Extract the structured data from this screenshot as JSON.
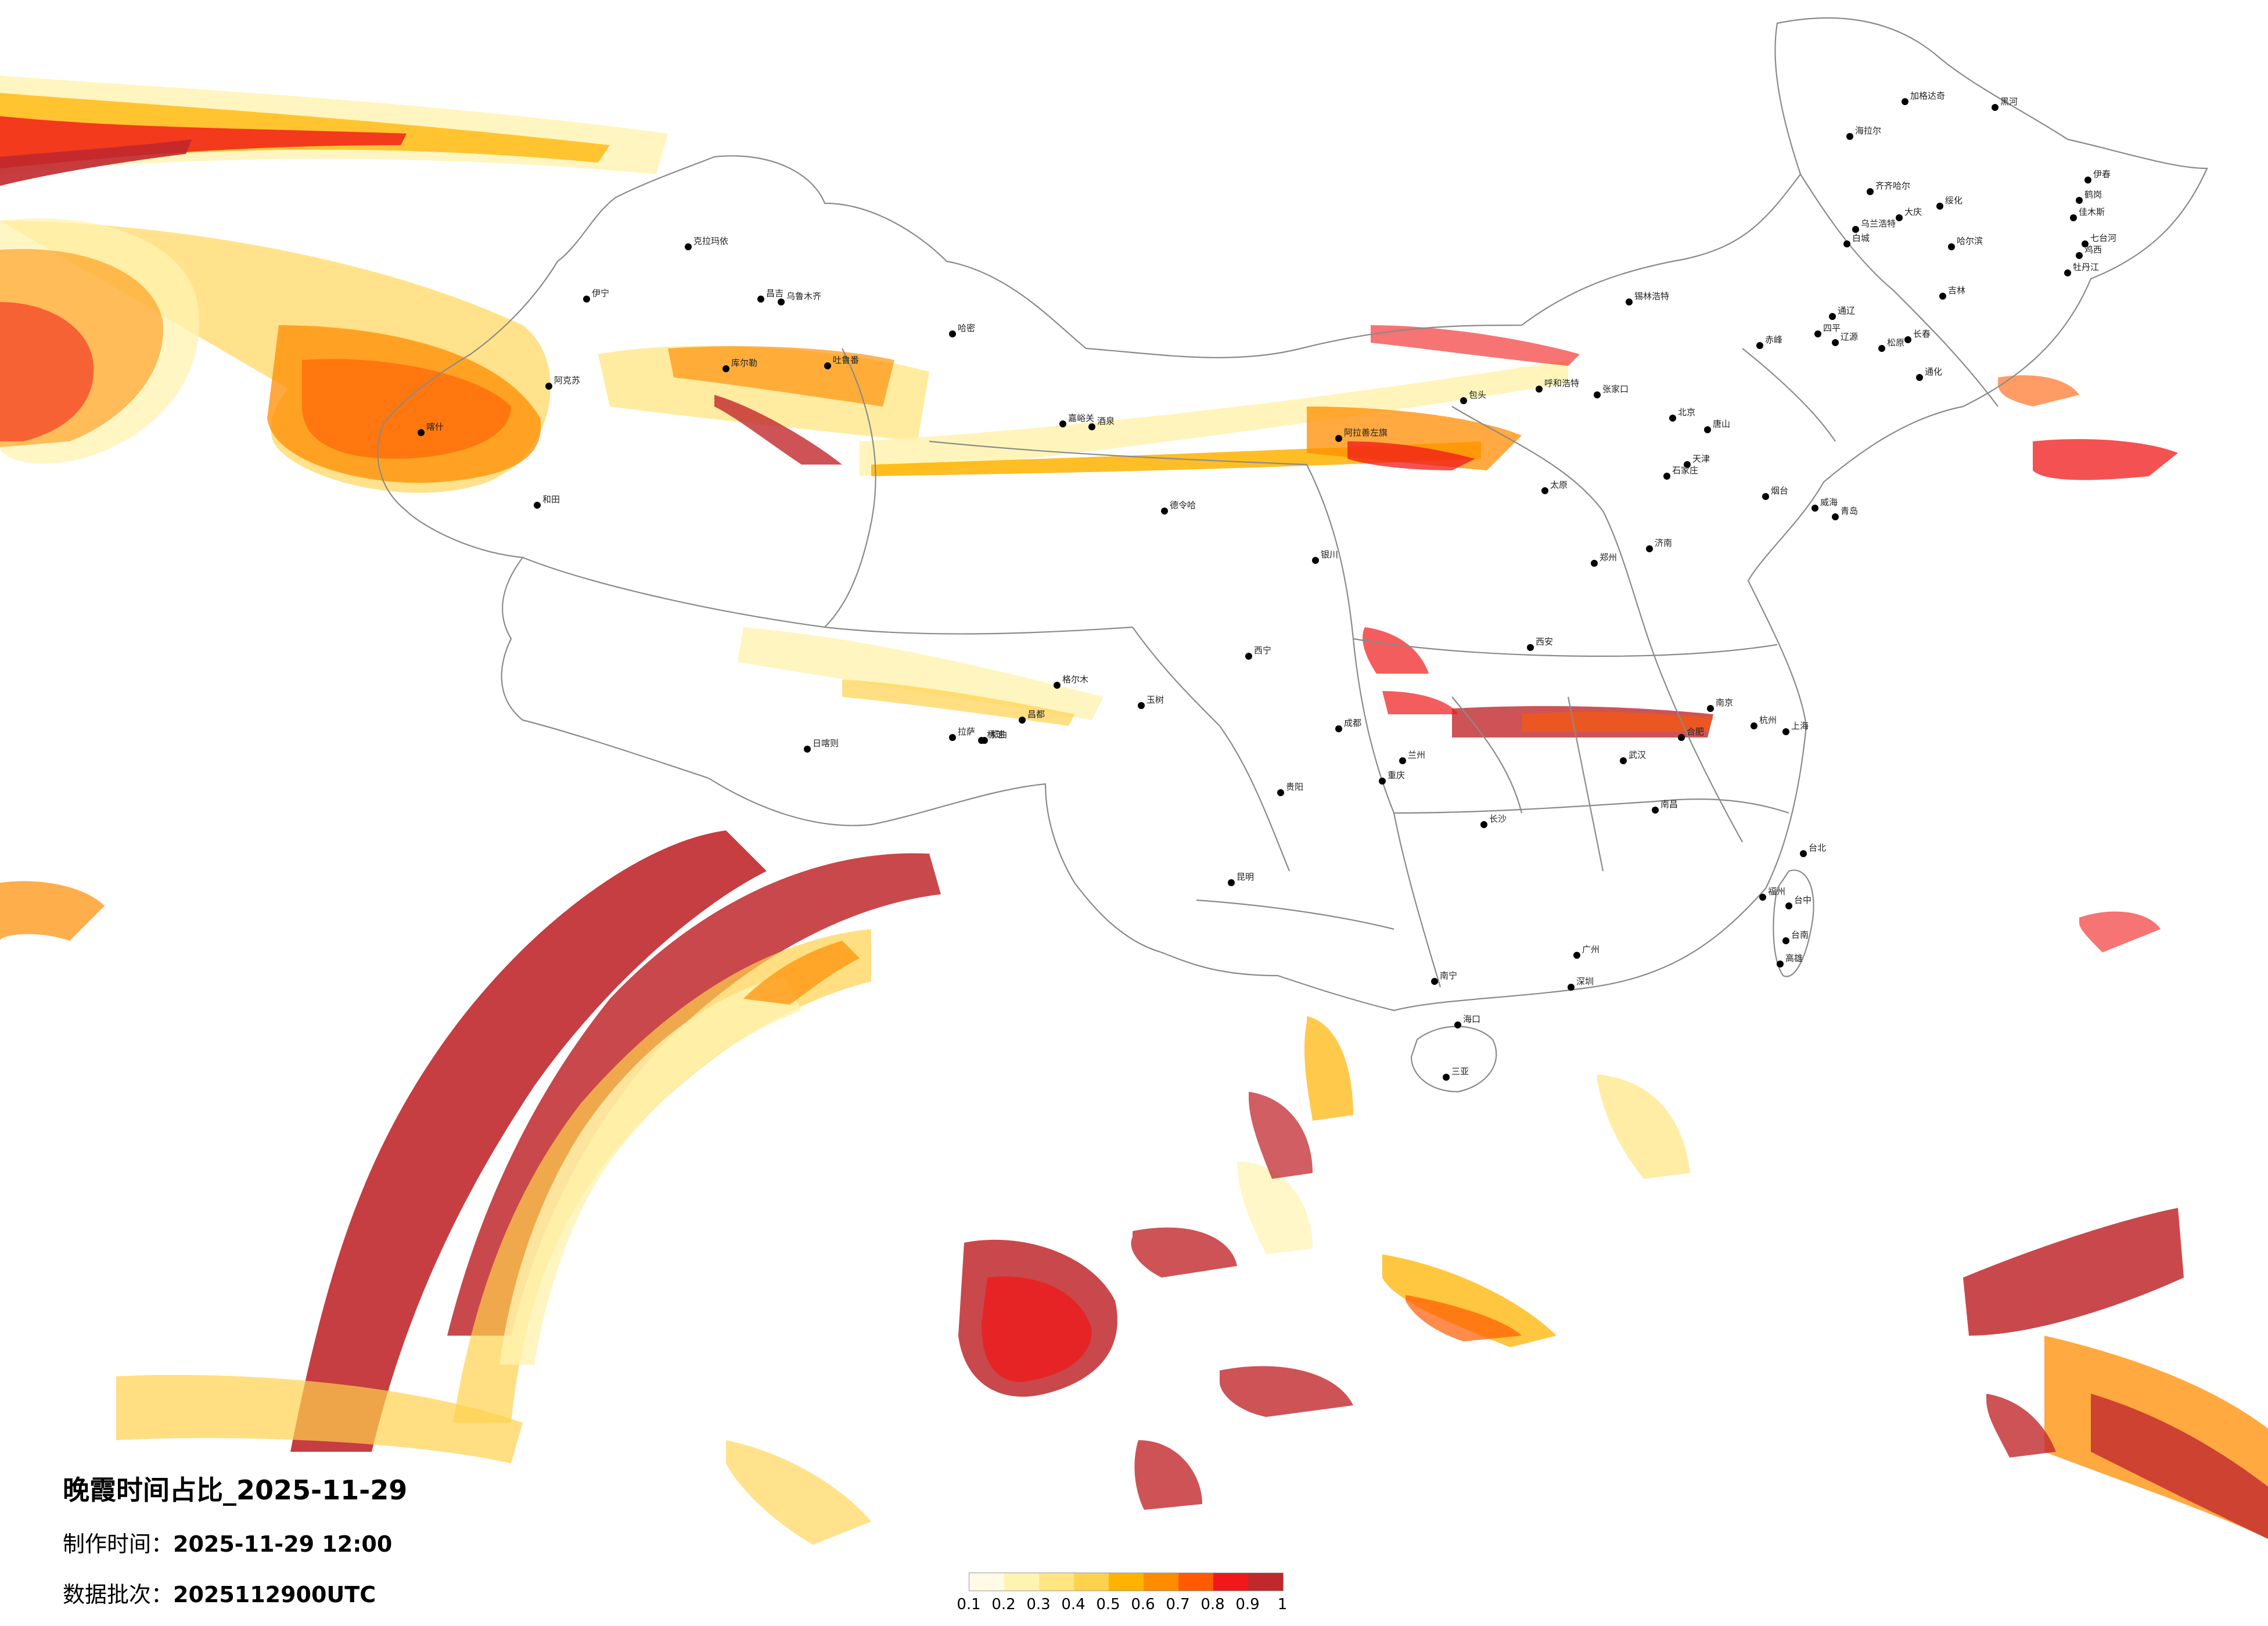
{
  "title": "晚霞时间占比_2025-11-29",
  "produced": {
    "label": "制作时间：",
    "value": "2025-11-29 12:00"
  },
  "batch": {
    "label": "数据批次：",
    "value": "2025112900UTC"
  },
  "legend": {
    "colors": [
      "#fffbe6",
      "#fff3b0",
      "#ffe680",
      "#ffd24d",
      "#ffb300",
      "#ff8c00",
      "#ff5a00",
      "#f01818",
      "#c0282d"
    ],
    "ticks": [
      "0.1",
      "0.2",
      "0.3",
      "0.4",
      "0.5",
      "0.6",
      "0.7",
      "0.8",
      "0.9",
      "1"
    ]
  },
  "cities": [
    "喀什",
    "和田",
    "伊宁",
    "克拉玛依",
    "昌吉",
    "乌鲁木齐",
    "吐鲁番",
    "哈密",
    "阿克苏",
    "库尔勒",
    "嘉峪关",
    "酒泉",
    "格尔木",
    "德令哈",
    "阿拉善左旗",
    "银川",
    "海拉尔",
    "加格达奇",
    "黑河",
    "伊春",
    "鹤岗",
    "佳木斯",
    "七台河",
    "鸡西",
    "牡丹江",
    "齐齐哈尔",
    "大庆",
    "绥化",
    "哈尔滨",
    "乌兰浩特",
    "白城",
    "通辽",
    "松原",
    "长春",
    "吉林",
    "四平",
    "辽源",
    "通化",
    "赤峰",
    "锡林浩特",
    "包头",
    "呼和浩特",
    "张家口",
    "北京",
    "天津",
    "唐山",
    "石家庄",
    "太原",
    "济南",
    "青岛",
    "威海",
    "烟台",
    "郑州",
    "西安",
    "兰州",
    "西宁",
    "日喀则",
    "拉萨",
    "那曲",
    "昌都",
    "林芝",
    "玉树",
    "成都",
    "重庆",
    "贵阳",
    "昆明",
    "南宁",
    "海口",
    "三亚",
    "广州",
    "深圳",
    "长沙",
    "武汉",
    "南昌",
    "福州",
    "杭州",
    "上海",
    "南京",
    "合肥",
    "台北",
    "台中",
    "台南",
    "高雄"
  ]
}
